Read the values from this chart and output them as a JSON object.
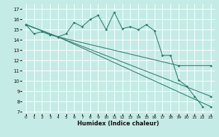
{
  "xlabel": "Humidex (Indice chaleur)",
  "bg_color": "#c5ebe6",
  "grid_color": "#b0d8d2",
  "line_color": "#2e7d6e",
  "xlim": [
    -0.5,
    23.5
  ],
  "ylim": [
    6.8,
    17.5
  ],
  "yticks": [
    7,
    8,
    9,
    10,
    11,
    12,
    13,
    14,
    15,
    16,
    17
  ],
  "xticks": [
    0,
    1,
    2,
    3,
    4,
    5,
    6,
    7,
    8,
    9,
    10,
    11,
    12,
    13,
    14,
    15,
    16,
    17,
    18,
    19,
    20,
    21,
    22,
    23
  ],
  "line1_x": [
    0,
    1,
    2,
    3,
    4,
    5,
    6,
    7,
    8,
    9,
    10,
    11,
    12,
    13,
    14,
    15,
    16,
    17,
    18,
    19,
    20,
    21,
    22
  ],
  "line1_y": [
    15.5,
    14.6,
    14.8,
    14.5,
    14.3,
    14.6,
    15.7,
    15.3,
    16.0,
    16.4,
    15.0,
    16.7,
    15.1,
    15.3,
    15.0,
    15.5,
    14.9,
    12.5,
    12.5,
    10.1,
    9.5,
    8.5,
    7.5
  ],
  "line2_x": [
    0,
    4,
    23
  ],
  "line2_y": [
    15.5,
    14.3,
    7.5
  ],
  "line3_x": [
    0,
    4,
    23
  ],
  "line3_y": [
    15.5,
    14.3,
    8.5
  ],
  "line4_x": [
    0,
    4,
    19,
    23
  ],
  "line4_y": [
    15.5,
    14.3,
    11.5,
    11.5
  ]
}
